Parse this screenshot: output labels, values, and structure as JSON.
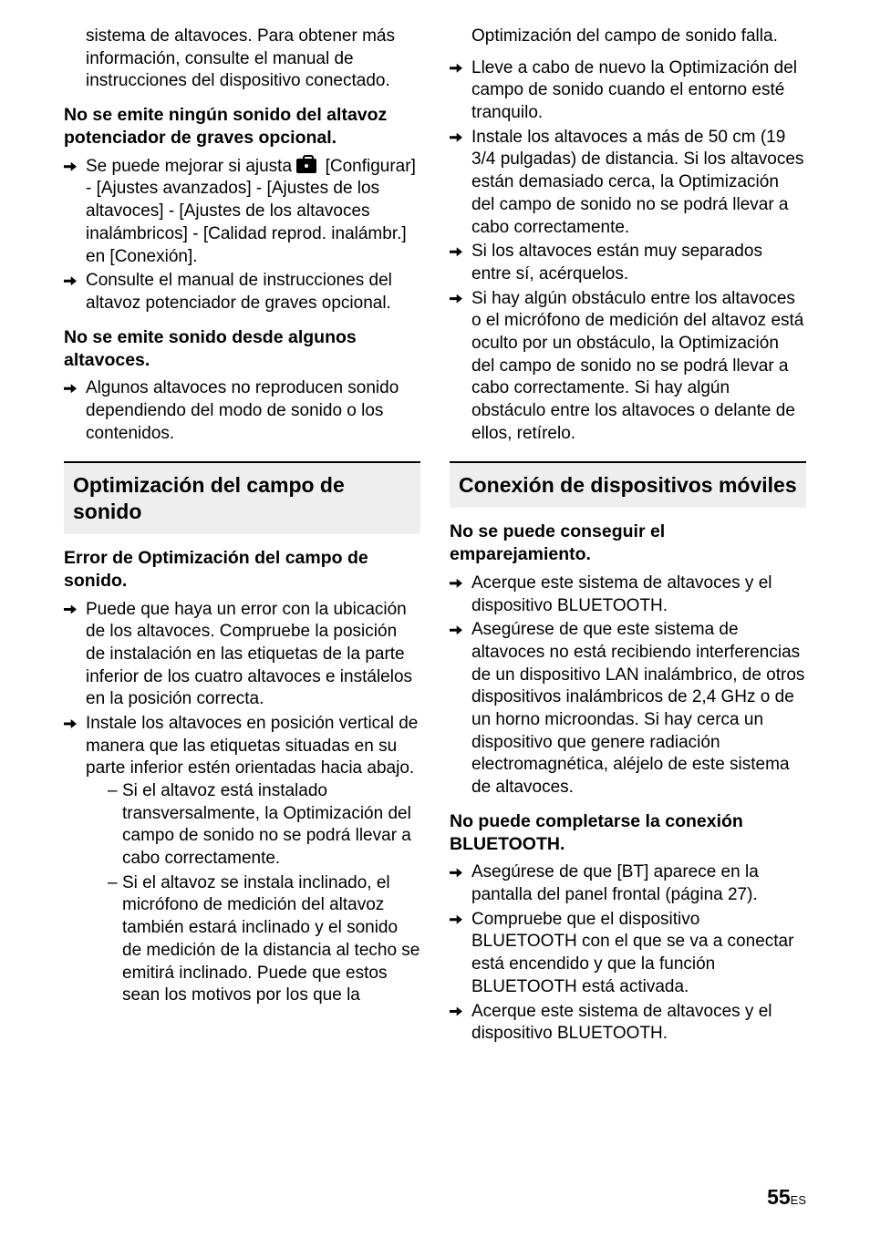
{
  "page_number": "55",
  "page_suffix": "ES",
  "col1": {
    "intro_para": "sistema de altavoces. Para obtener más información, consulte el manual de instrucciones del dispositivo conectado.",
    "h1": "No se emite ningún sonido del altavoz potenciador de graves opcional.",
    "h1_items": [
      {
        "pre": "Se puede mejorar si ajusta ",
        "post": " [Configurar] - [Ajustes avanzados] - [Ajustes de los altavoces] - [Ajustes de los altavoces inalámbricos] - [Calidad reprod. inalámbr.] en [Conexión]."
      },
      "Consulte el manual de instrucciones del altavoz potenciador de graves opcional."
    ],
    "h2": "No se emite sonido desde algunos altavoces.",
    "h2_items": [
      "Algunos altavoces no reproducen sonido dependiendo del modo de sonido o los contenidos."
    ],
    "section_title": "Optimización del campo de sonido",
    "h3": "Error de Optimización del campo de sonido.",
    "h3_items": [
      "Puede que haya un error con la ubicación de los altavoces. Compruebe la posición de instalación en las etiquetas de la parte inferior de los cuatro altavoces e instálelos en la posición correcta.",
      "Instale los altavoces en posición vertical de manera que las etiquetas situadas en su parte inferior estén orientadas hacia abajo."
    ],
    "h3_sub": [
      "Si el altavoz está instalado transversalmente, la Optimización del campo de sonido no se podrá llevar a cabo correctamente.",
      "Si el altavoz se instala inclinado, el micrófono de medición del altavoz también estará inclinado y el sonido de medición de la distancia al techo se emitirá inclinado. Puede que estos sean los motivos por los que la"
    ]
  },
  "col2": {
    "intro_para": "Optimización del campo de sonido falla.",
    "top_items": [
      "Lleve a cabo de nuevo la Optimización del campo de sonido cuando el entorno esté tranquilo.",
      "Instale los altavoces a más de 50 cm (19 3/4 pulgadas) de distancia. Si los altavoces están demasiado cerca, la Optimización del campo de sonido no se podrá llevar a cabo correctamente.",
      "Si los altavoces están muy separados entre sí, acérquelos.",
      "Si hay algún obstáculo entre los altavoces o el micrófono de medición del altavoz está oculto por un obstáculo, la Optimización del campo de sonido no se podrá llevar a cabo correctamente. Si hay algún obstáculo entre los altavoces o delante de ellos, retírelo."
    ],
    "section_title": "Conexión de dispositivos móviles",
    "h1": "No se puede conseguir el emparejamiento.",
    "h1_items": [
      "Acerque este sistema de altavoces y el dispositivo BLUETOOTH.",
      "Asegúrese de que este sistema de altavoces no está recibiendo interferencias de un dispositivo LAN inalámbrico, de otros dispositivos inalámbricos de 2,4 GHz o de un horno microondas. Si hay cerca un dispositivo que genere radiación electromagnética, aléjelo de este sistema de altavoces."
    ],
    "h2": "No puede completarse la conexión BLUETOOTH.",
    "h2_items": [
      "Asegúrese de que [BT] aparece en la pantalla del panel frontal (página 27).",
      "Compruebe que el dispositivo BLUETOOTH con el que se va a conectar está encendido y que la función BLUETOOTH está activada.",
      "Acerque este sistema de altavoces y el dispositivo BLUETOOTH."
    ]
  }
}
